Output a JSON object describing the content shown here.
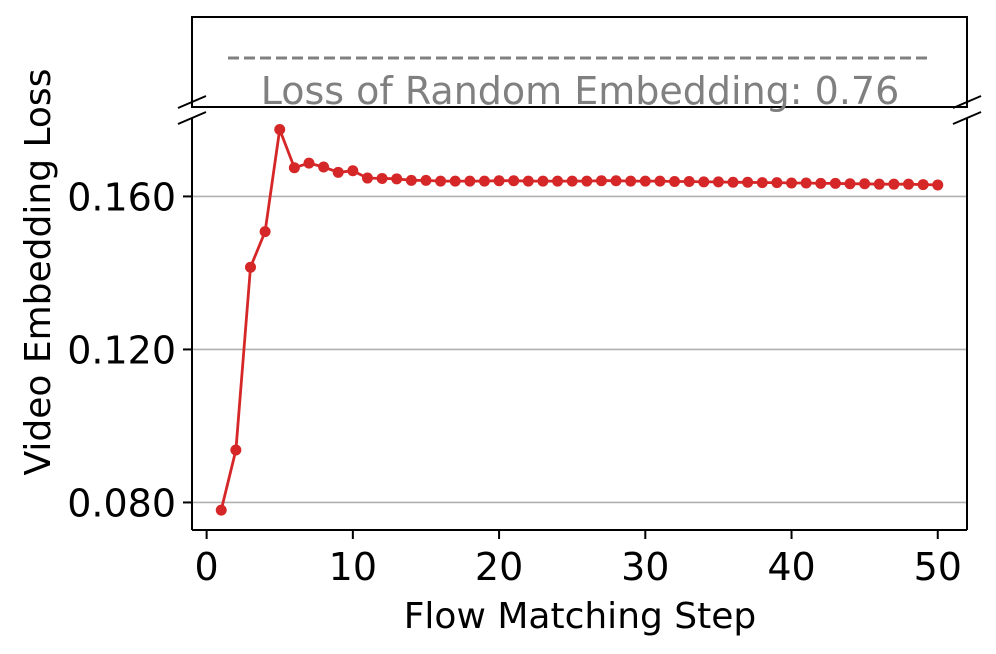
{
  "chart_data": {
    "type": "line",
    "title": "",
    "xlabel": "Flow Matching Step",
    "ylabel": "Video Embedding Loss",
    "xlim": [
      -1,
      52
    ],
    "ylim": [
      0.0728,
      0.1805
    ],
    "xticks": [
      0,
      10,
      20,
      30,
      40,
      50
    ],
    "xtick_labels": [
      "0",
      "10",
      "20",
      "30",
      "40",
      "50"
    ],
    "yticks": [
      0.08,
      0.12,
      0.16
    ],
    "ytick_labels": [
      "0.080",
      "0.120",
      "0.160"
    ],
    "grid": "horizontal",
    "broken_axis": true,
    "series_color": "#d62728",
    "reference_line": {
      "label": "Loss of Random Embedding: 0.76",
      "value": 0.76,
      "style": "dashed",
      "color": "#808080"
    },
    "series": [
      {
        "x": [
          1,
          2,
          3,
          4,
          5,
          6,
          7,
          8,
          9,
          10,
          11,
          12,
          13,
          14,
          15,
          16,
          17,
          18,
          19,
          20,
          21,
          22,
          23,
          24,
          25,
          26,
          27,
          28,
          29,
          30,
          31,
          32,
          33,
          34,
          35,
          36,
          37,
          38,
          39,
          40,
          41,
          42,
          43,
          44,
          45,
          46,
          47,
          48,
          49,
          50
        ],
        "values": [
          0.078,
          0.0937,
          0.1415,
          0.1508,
          0.1775,
          0.1675,
          0.1687,
          0.1677,
          0.1663,
          0.1667,
          0.1648,
          0.1647,
          0.1646,
          0.1642,
          0.1642,
          0.164,
          0.164,
          0.164,
          0.164,
          0.1641,
          0.1641,
          0.164,
          0.164,
          0.164,
          0.164,
          0.164,
          0.1641,
          0.1641,
          0.164,
          0.164,
          0.164,
          0.1639,
          0.1639,
          0.1638,
          0.1638,
          0.1637,
          0.1637,
          0.1636,
          0.1636,
          0.1635,
          0.1635,
          0.1634,
          0.1634,
          0.1633,
          0.1633,
          0.1632,
          0.1632,
          0.1632,
          0.1631,
          0.163
        ]
      }
    ]
  }
}
